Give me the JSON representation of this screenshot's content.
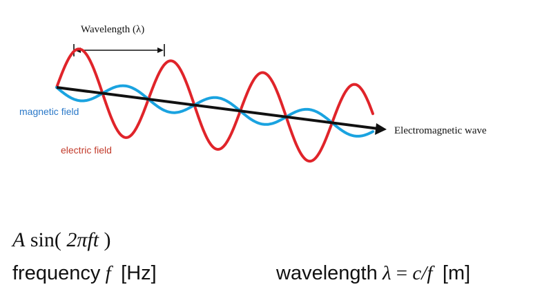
{
  "diagram": {
    "wavelength_label": "Wavelength (λ)",
    "wave_label": "Electromagnetic wave",
    "magnetic_label": "magnetic field",
    "electric_label": "electric field",
    "colors": {
      "electric": "#e0242a",
      "magnetic": "#1aa3e0",
      "axis": "#111111",
      "magnetic_text": "#2a78c8",
      "electric_text": "#c23a2a"
    }
  },
  "formula": {
    "amplitude": "A",
    "func": "sin(",
    "argument": "2πft",
    "close": ")"
  },
  "frequency": {
    "word": "frequency",
    "symbol": "f",
    "unit": "[Hz]"
  },
  "wavelength": {
    "word": "wavelength",
    "symbol": "λ",
    "equals": "=",
    "expr": "c/f",
    "unit": "[m]"
  }
}
